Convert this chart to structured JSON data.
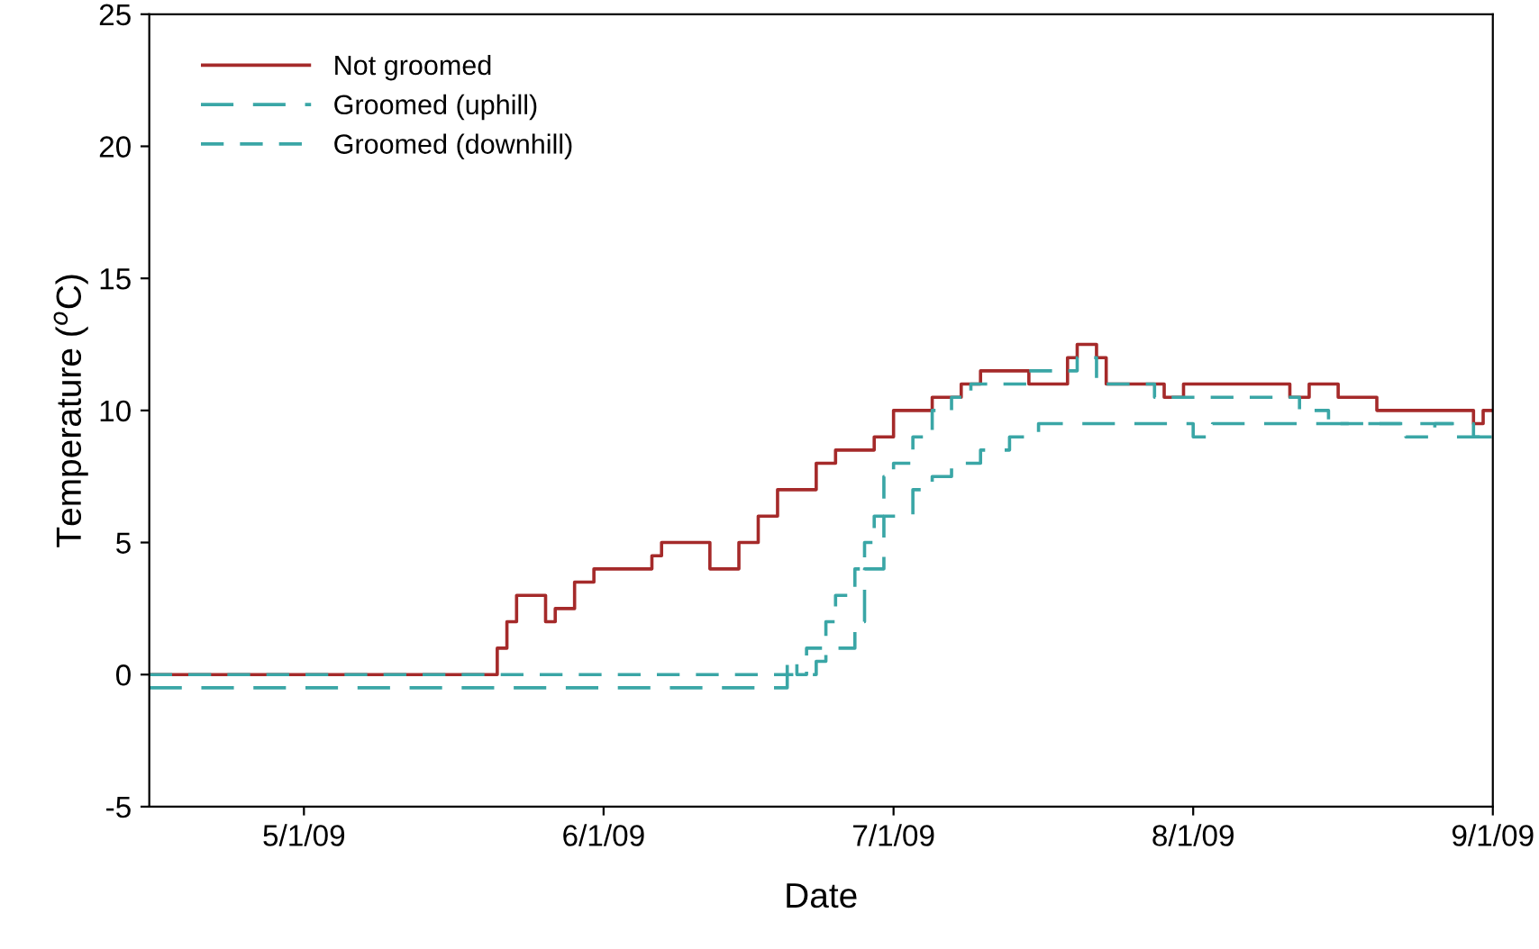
{
  "chart_data": {
    "type": "step",
    "xlabel": "Date",
    "ylabel": "Temperature ($^{o}$C)",
    "xlim": [
      "2009-04-15",
      "2009-09-01"
    ],
    "xticks": [
      {
        "value": "2009-05-01",
        "label": "5/1/09"
      },
      {
        "value": "2009-06-01",
        "label": "6/1/09"
      },
      {
        "value": "2009-07-01",
        "label": "7/1/09"
      },
      {
        "value": "2009-08-01",
        "label": "8/1/09"
      },
      {
        "value": "2009-09-01",
        "label": "9/1/09"
      }
    ],
    "ylim": [
      -5,
      25
    ],
    "yticks": [
      -5,
      0,
      5,
      10,
      15,
      20,
      25
    ],
    "grid": false,
    "legend": "top left",
    "series": [
      {
        "name": "Not groomed",
        "color": "#a52a2a",
        "line_style": "solid",
        "x": [
          "2009-04-15",
          "2009-05-21",
          "2009-05-22",
          "2009-05-23",
          "2009-05-26",
          "2009-05-27",
          "2009-05-29",
          "2009-05-31",
          "2009-06-06",
          "2009-06-07",
          "2009-06-12",
          "2009-06-15",
          "2009-06-17",
          "2009-06-19",
          "2009-06-23",
          "2009-06-25",
          "2009-06-29",
          "2009-07-01",
          "2009-07-05",
          "2009-07-08",
          "2009-07-10",
          "2009-07-15",
          "2009-07-19",
          "2009-07-20",
          "2009-07-22",
          "2009-07-23",
          "2009-07-29",
          "2009-07-31",
          "2009-08-11",
          "2009-08-13",
          "2009-08-16",
          "2009-08-20",
          "2009-08-30",
          "2009-08-31",
          "2009-09-01"
        ],
        "values": [
          0,
          1,
          2,
          3,
          2,
          2.5,
          3.5,
          4,
          4.5,
          5,
          4,
          5,
          6,
          7,
          8,
          8.5,
          9,
          10,
          10.5,
          11,
          11.5,
          11,
          12,
          12.5,
          12,
          11,
          10.5,
          11,
          10.5,
          11,
          10.5,
          10,
          9.5,
          10,
          10
        ]
      },
      {
        "name": "Groomed (uphill)",
        "color": "#3aa6a6",
        "line_style": "dashed",
        "x": [
          "2009-04-15",
          "2009-06-20",
          "2009-06-23",
          "2009-06-24",
          "2009-06-27",
          "2009-06-28",
          "2009-06-30",
          "2009-07-03",
          "2009-07-05",
          "2009-07-07",
          "2009-07-10",
          "2009-07-13",
          "2009-07-16",
          "2009-07-31",
          "2009-08-01",
          "2009-08-03",
          "2009-08-30",
          "2009-09-01"
        ],
        "values": [
          -0.5,
          0,
          0.5,
          1,
          2,
          4,
          6,
          7,
          7.5,
          8,
          8.5,
          9,
          9.5,
          9.5,
          9,
          9.5,
          9,
          9
        ]
      },
      {
        "name": "Groomed (downhill)",
        "color": "#3aa6a6",
        "line_style": "dashed",
        "x": [
          "2009-04-15",
          "2009-06-20",
          "2009-06-21",
          "2009-06-22",
          "2009-06-24",
          "2009-06-25",
          "2009-06-27",
          "2009-06-28",
          "2009-06-29",
          "2009-06-30",
          "2009-07-01",
          "2009-07-03",
          "2009-07-05",
          "2009-07-07",
          "2009-07-09",
          "2009-07-15",
          "2009-07-20",
          "2009-07-22",
          "2009-07-28",
          "2009-08-12",
          "2009-08-15",
          "2009-08-23",
          "2009-08-26",
          "2009-08-28",
          "2009-09-01"
        ],
        "values": [
          0,
          0.5,
          0,
          1,
          2,
          3,
          4,
          5,
          6,
          7.5,
          8,
          9,
          10,
          10.5,
          11,
          11.5,
          12,
          11,
          10.5,
          10,
          9.5,
          9,
          9.5,
          9,
          9
        ]
      }
    ]
  }
}
